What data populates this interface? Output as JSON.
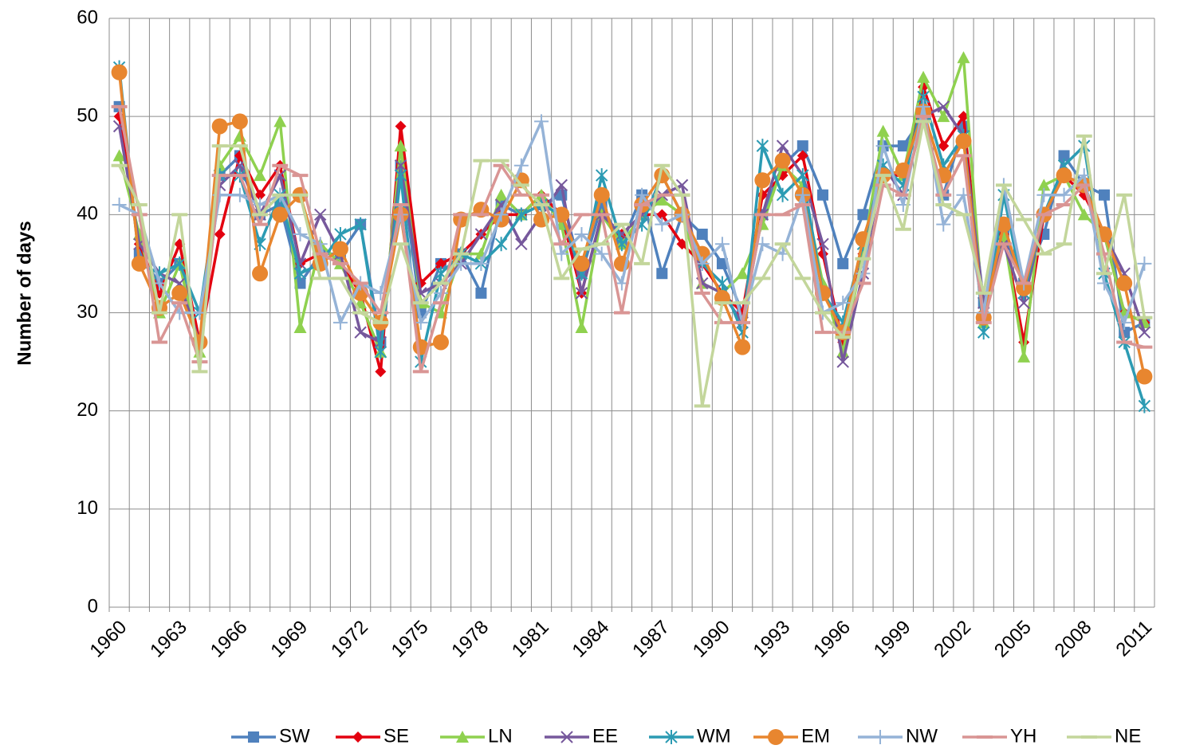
{
  "chart_data": {
    "type": "line",
    "y_label": "Number of days",
    "categories": [
      "1960",
      null,
      null,
      "1963",
      null,
      null,
      "1966",
      null,
      null,
      "1969",
      null,
      null,
      "1972",
      null,
      null,
      "1975",
      null,
      null,
      "1978",
      null,
      null,
      "1981",
      null,
      null,
      "1984",
      null,
      null,
      "1987",
      null,
      null,
      "1990",
      null,
      null,
      "1993",
      null,
      null,
      "1996",
      null,
      null,
      "1999",
      null,
      null,
      "2002",
      null,
      null,
      "2005",
      null,
      null,
      "2008",
      null,
      null,
      "2011"
    ],
    "ylim": [
      0,
      60
    ],
    "yticks": [
      0,
      10,
      20,
      30,
      40,
      50,
      60
    ],
    "grid": true,
    "legend": "bottom",
    "series": [
      {
        "name": "SW",
        "color": "#4f81bd",
        "marker": "square",
        "values": [
          51,
          36,
          33,
          35,
          27,
          44,
          46,
          40,
          41,
          33,
          36,
          36,
          39,
          27,
          45,
          30,
          35,
          36,
          32,
          41,
          40,
          41,
          42,
          34,
          41,
          37,
          42,
          34,
          40,
          38,
          35,
          30,
          40,
          45,
          47,
          42,
          35,
          40,
          47,
          47,
          50,
          42,
          49,
          31,
          38,
          33,
          38,
          46,
          43,
          42,
          28,
          29
        ]
      },
      {
        "name": "SE",
        "color": "#e3000f",
        "marker": "diamond",
        "values": [
          50,
          37,
          32,
          37,
          27,
          38,
          46,
          42,
          45,
          35,
          36,
          35,
          32,
          24,
          49,
          33,
          35,
          36,
          38,
          40,
          40,
          42,
          40,
          32,
          40,
          38,
          40,
          40,
          37,
          35,
          32,
          30,
          42,
          44,
          46,
          36,
          27,
          36,
          44,
          44,
          53,
          47,
          50,
          30,
          38,
          27,
          40,
          44,
          42,
          38,
          30,
          29
        ]
      },
      {
        "name": "LN",
        "color": "#8fd14f",
        "marker": "triangle",
        "values": [
          46,
          38,
          30,
          35,
          26,
          45,
          48,
          44,
          49.5,
          28.5,
          37,
          35,
          31,
          26,
          47,
          31,
          30,
          36,
          36,
          42,
          40,
          42,
          39,
          28.5,
          40,
          37,
          40,
          41.5,
          40,
          33,
          32,
          34,
          39,
          45,
          43,
          33,
          26,
          36,
          48.5,
          44,
          54,
          50,
          56,
          29,
          38,
          25.5,
          43,
          44,
          40,
          38,
          30,
          29
        ]
      },
      {
        "name": "EE",
        "color": "#76589c",
        "marker": "cross",
        "values": [
          49,
          37,
          34,
          33,
          27,
          43,
          45,
          40,
          44,
          35,
          40,
          36,
          28,
          27,
          45,
          32,
          33,
          35,
          38,
          41,
          37,
          40,
          43,
          32,
          40,
          38,
          40,
          42,
          43,
          33,
          32,
          29,
          40,
          47,
          44,
          37,
          25,
          34,
          45,
          42,
          50,
          51,
          48,
          31,
          37,
          31,
          40,
          44,
          43,
          38,
          34,
          28
        ]
      },
      {
        "name": "WM",
        "color": "#2c9bb3",
        "marker": "star",
        "values": [
          55,
          35,
          34,
          35,
          30,
          44,
          44,
          37,
          42,
          34,
          35,
          38,
          39,
          26,
          44,
          25,
          34,
          36,
          35,
          37,
          40,
          41,
          40,
          34,
          44,
          37,
          39,
          44,
          40,
          35,
          33,
          28,
          47,
          42,
          44,
          32,
          29,
          37,
          45,
          43,
          52,
          45,
          48,
          28,
          42,
          32,
          40,
          45,
          47,
          34,
          27,
          20.5
        ]
      },
      {
        "name": "EM",
        "color": "#e8862f",
        "marker": "circle",
        "values": [
          54.5,
          35,
          30.5,
          32,
          27,
          49,
          49.5,
          34,
          40,
          42,
          35,
          36.5,
          32,
          29,
          40,
          26.5,
          27,
          39.5,
          40.5,
          39.5,
          43.5,
          39.5,
          40,
          35,
          42,
          35,
          41,
          44,
          40,
          36,
          31.5,
          26.5,
          43.5,
          45.5,
          42,
          32,
          28,
          37.5,
          44,
          44.5,
          50.5,
          44,
          47.5,
          29.5,
          39,
          32.5,
          40,
          44,
          43,
          38,
          33,
          23.5
        ]
      },
      {
        "name": "NW",
        "color": "#95b3d7",
        "marker": "plus",
        "values": [
          41,
          40,
          33,
          30,
          30,
          42,
          42,
          41,
          42,
          38,
          37,
          29,
          33,
          32,
          40,
          29,
          32,
          35,
          35,
          40,
          45,
          49.5,
          36,
          38,
          36,
          33,
          42,
          39,
          40,
          35,
          37,
          29,
          37,
          36,
          42,
          30,
          31,
          34,
          47,
          41,
          51,
          39,
          42,
          30,
          43,
          33,
          42,
          42,
          44,
          33,
          29,
          35
        ]
      },
      {
        "name": "YH",
        "color": "#d99594",
        "marker": "dash",
        "values": [
          51,
          40,
          27,
          31,
          25,
          44,
          44,
          39,
          45,
          44,
          36,
          35,
          33,
          30,
          41,
          24,
          31,
          40,
          40,
          45,
          42,
          42,
          37,
          40,
          40,
          30,
          41,
          42,
          42,
          32,
          29,
          29,
          40,
          40,
          41,
          28,
          28,
          33,
          43,
          42,
          50,
          42,
          46,
          29,
          37,
          33,
          40,
          41,
          43,
          36,
          27,
          26.5
        ]
      },
      {
        "name": "NE",
        "color": "#c3d69b",
        "marker": "dash",
        "values": [
          45,
          41,
          30,
          40,
          24,
          47,
          47,
          40,
          42,
          42,
          33.5,
          33.5,
          30,
          29,
          37,
          31,
          33,
          36,
          45.5,
          45.5,
          43,
          41,
          33.5,
          36.5,
          37,
          39,
          35,
          45,
          42,
          20.5,
          31,
          31,
          33.5,
          37,
          33.5,
          30,
          27.5,
          35.5,
          44,
          38.5,
          49.5,
          41,
          40,
          32,
          43,
          39.5,
          36,
          37,
          48,
          34,
          42,
          29.5
        ]
      }
    ]
  }
}
